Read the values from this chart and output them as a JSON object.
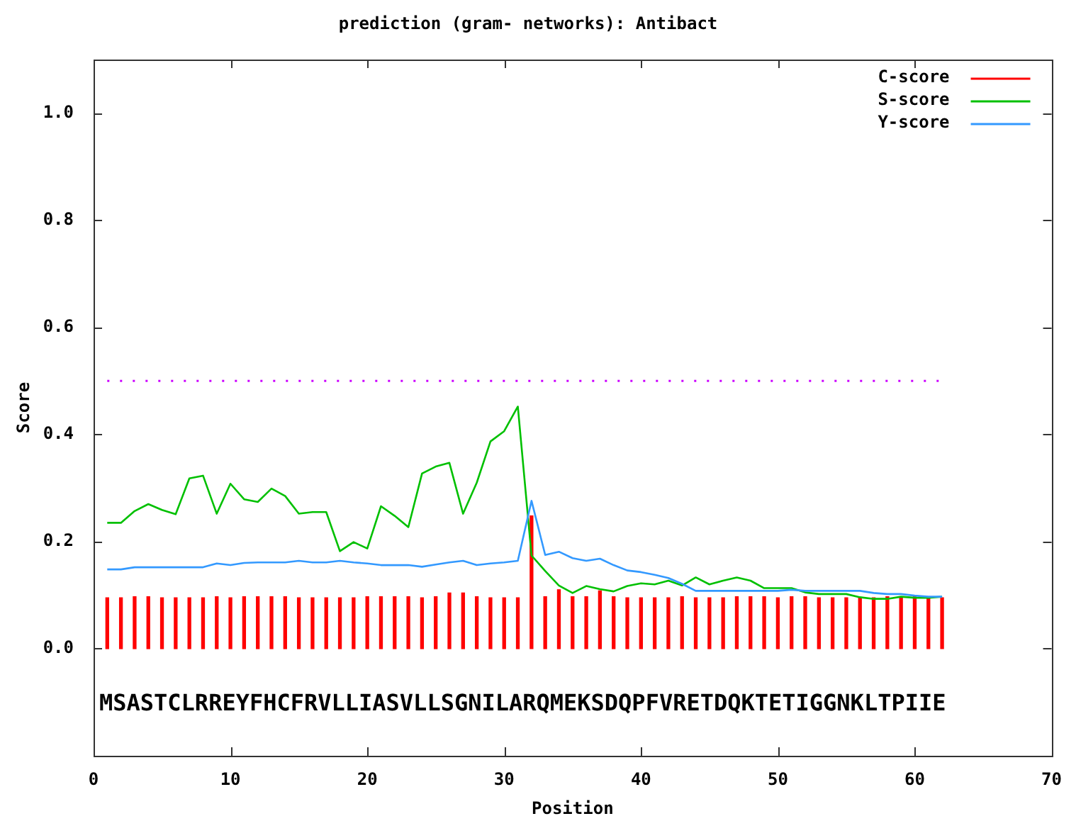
{
  "chart_data": {
    "type": "line",
    "title": "prediction (gram- networks): Antibact",
    "xlabel": "Position",
    "ylabel": "Score",
    "x": [
      1,
      2,
      3,
      4,
      5,
      6,
      7,
      8,
      9,
      10,
      11,
      12,
      13,
      14,
      15,
      16,
      17,
      18,
      19,
      20,
      21,
      22,
      23,
      24,
      25,
      26,
      27,
      28,
      29,
      30,
      31,
      32,
      33,
      34,
      35,
      36,
      37,
      38,
      39,
      40,
      41,
      42,
      43,
      44,
      45,
      46,
      47,
      48,
      49,
      50,
      51,
      52,
      53,
      54,
      55,
      56,
      57,
      58,
      59,
      60,
      61,
      62
    ],
    "series": [
      {
        "name": "C-score",
        "type": "bar",
        "color": "#ff0000",
        "values": [
          0.095,
          0.095,
          0.097,
          0.097,
          0.095,
          0.095,
          0.095,
          0.095,
          0.097,
          0.095,
          0.097,
          0.097,
          0.097,
          0.097,
          0.095,
          0.095,
          0.095,
          0.095,
          0.095,
          0.097,
          0.097,
          0.097,
          0.097,
          0.095,
          0.097,
          0.104,
          0.104,
          0.097,
          0.095,
          0.095,
          0.095,
          0.248,
          0.097,
          0.11,
          0.097,
          0.097,
          0.108,
          0.097,
          0.095,
          0.095,
          0.095,
          0.095,
          0.097,
          0.095,
          0.095,
          0.095,
          0.097,
          0.097,
          0.097,
          0.095,
          0.097,
          0.097,
          0.095,
          0.095,
          0.095,
          0.095,
          0.095,
          0.097,
          0.095,
          0.097,
          0.095,
          0.095
        ]
      },
      {
        "name": "S-score",
        "color": "#00c000",
        "values": [
          0.235,
          0.235,
          0.257,
          0.27,
          0.259,
          0.251,
          0.318,
          0.323,
          0.252,
          0.308,
          0.279,
          0.274,
          0.299,
          0.285,
          0.252,
          0.255,
          0.255,
          0.182,
          0.199,
          0.187,
          0.266,
          0.248,
          0.227,
          0.327,
          0.34,
          0.347,
          0.252,
          0.31,
          0.387,
          0.406,
          0.452,
          0.174,
          0.145,
          0.118,
          0.104,
          0.117,
          0.111,
          0.107,
          0.117,
          0.122,
          0.12,
          0.127,
          0.118,
          0.133,
          0.12,
          0.127,
          0.133,
          0.127,
          0.113,
          0.113,
          0.113,
          0.105,
          0.102,
          0.102,
          0.102,
          0.096,
          0.093,
          0.093,
          0.097,
          0.095,
          0.095,
          0.097
        ]
      },
      {
        "name": "Y-score",
        "color": "#3399ff",
        "values": [
          0.148,
          0.148,
          0.152,
          0.152,
          0.152,
          0.152,
          0.152,
          0.152,
          0.159,
          0.156,
          0.16,
          0.161,
          0.161,
          0.161,
          0.164,
          0.161,
          0.161,
          0.164,
          0.161,
          0.159,
          0.156,
          0.156,
          0.156,
          0.153,
          0.157,
          0.161,
          0.164,
          0.156,
          0.159,
          0.161,
          0.164,
          0.276,
          0.175,
          0.181,
          0.169,
          0.164,
          0.168,
          0.156,
          0.146,
          0.143,
          0.138,
          0.132,
          0.121,
          0.108,
          0.108,
          0.108,
          0.108,
          0.108,
          0.108,
          0.108,
          0.11,
          0.108,
          0.108,
          0.108,
          0.108,
          0.108,
          0.104,
          0.102,
          0.102,
          0.099,
          0.097,
          0.097
        ]
      }
    ],
    "xlim": [
      0,
      70
    ],
    "xticks": [
      0,
      10,
      20,
      30,
      40,
      50,
      60,
      70
    ],
    "ylim": [
      -0.2,
      1.1
    ],
    "yticks": [
      {
        "value": 0,
        "label": "0.0"
      },
      0.2,
      0.4,
      0.6,
      0.8,
      {
        "value": 1,
        "label": "1.0"
      }
    ],
    "ref_lines": [
      {
        "axis": "y",
        "value": 0.5,
        "color": "#cc00ff",
        "line_style": "dotted"
      }
    ],
    "legend": "top right",
    "annotations": [
      "MSASTCLRREYFHCFRVLLIASVLLSGNILARQMEKSDQPFVRETDQKTETIGGNKLTPIIE"
    ]
  }
}
